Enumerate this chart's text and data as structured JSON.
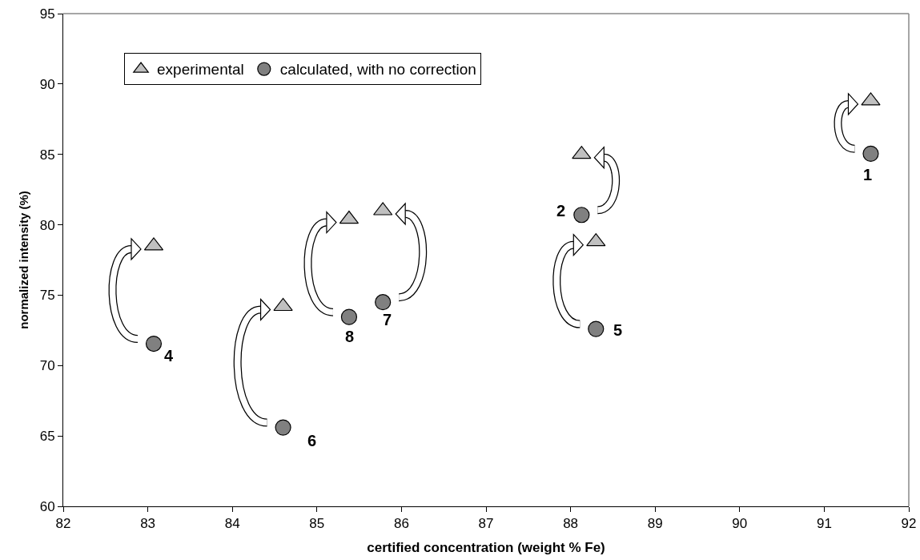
{
  "chart_data": {
    "type": "scatter",
    "xlabel": "certified concentration (weight % Fe)",
    "ylabel": "normalized intensity (%)",
    "x": [
      91.55,
      88.13,
      83.07,
      88.3,
      84.6,
      85.78,
      85.38
    ],
    "series": [
      {
        "name": "experimental",
        "color": "#c0c0c0",
        "marker": "triangle",
        "values": [
          88.8,
          85.0,
          78.5,
          78.8,
          74.2,
          81.0,
          80.4
        ]
      },
      {
        "name": "calculated, with no correction",
        "color": "#808080",
        "marker": "circle",
        "values": [
          85.05,
          80.7,
          71.55,
          72.6,
          65.6,
          74.5,
          73.45
        ]
      }
    ],
    "annotations": [
      {
        "text": "1",
        "x": 91.55,
        "y": 85.05
      },
      {
        "text": "2",
        "x": 88.13,
        "y": 80.7
      },
      {
        "text": "4",
        "x": 83.07,
        "y": 71.55
      },
      {
        "text": "5",
        "x": 88.3,
        "y": 72.6
      },
      {
        "text": "6",
        "x": 84.6,
        "y": 65.6
      },
      {
        "text": "7",
        "x": 85.78,
        "y": 74.5
      },
      {
        "text": "8",
        "x": 85.38,
        "y": 73.45
      }
    ],
    "xlim": [
      82,
      92
    ],
    "xticks": [
      82,
      83,
      84,
      85,
      86,
      87,
      88,
      89,
      90,
      91,
      92
    ],
    "ylim": [
      60,
      95
    ],
    "yticks": [
      60,
      65,
      70,
      75,
      80,
      85,
      90,
      95
    ],
    "grid": false,
    "legend": "top left"
  }
}
